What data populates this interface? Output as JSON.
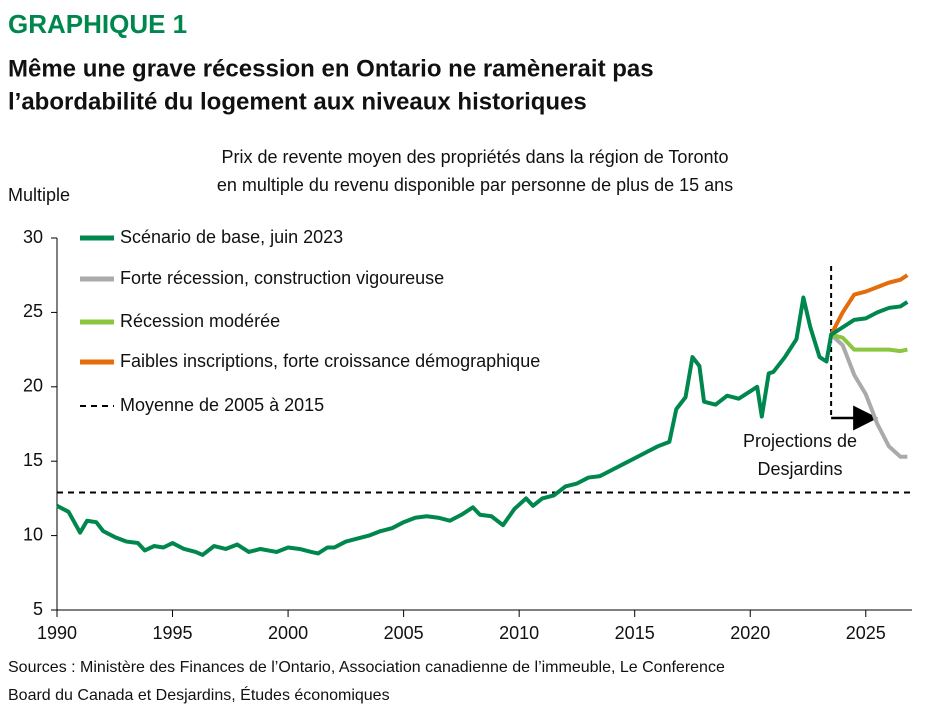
{
  "chart_data": {
    "type": "line",
    "label": "GRAPHIQUE 1",
    "title": [
      "Même une grave récession en Ontario ne ramènerait pas",
      "l’abordabilité du logement aux niveaux historiques"
    ],
    "subtitle": [
      "Prix de revente moyen des propriétés dans la région de Toronto",
      "en multiple du revenu disponible par personne de plus de 15 ans"
    ],
    "ylabel": "Multiple",
    "source": [
      "Sources : Ministère des Finances de l’Ontario, Association canadienne de l’immeuble, Le Conference",
      "Board du Canada et Desjardins, Études économiques"
    ],
    "xlim": [
      1990,
      2027
    ],
    "xticks": [
      1990,
      1995,
      2000,
      2005,
      2010,
      2015,
      2020,
      2025
    ],
    "ylim": [
      5,
      30
    ],
    "yticks": [
      5,
      10,
      15,
      20,
      25,
      30
    ],
    "grid": false,
    "legend": "top-left",
    "series": [
      {
        "name": "Scénario de base, juin 2023",
        "color": "#00874e",
        "x": [
          1990.0,
          1990.5,
          1991.0,
          1991.3,
          1991.7,
          1992.0,
          1992.5,
          1993.0,
          1993.5,
          1993.8,
          1994.2,
          1994.6,
          1995.0,
          1995.5,
          1996.0,
          1996.3,
          1996.8,
          1997.3,
          1997.8,
          1998.3,
          1998.8,
          1999.5,
          2000.0,
          2000.5,
          2001.0,
          2001.3,
          2001.7,
          2002.0,
          2002.5,
          2003.0,
          2003.5,
          2004.0,
          2004.5,
          2005.0,
          2005.5,
          2006.0,
          2006.5,
          2007.0,
          2007.5,
          2008.0,
          2008.3,
          2008.8,
          2009.3,
          2009.8,
          2010.3,
          2010.6,
          2011.0,
          2011.5,
          2012.0,
          2012.5,
          2013.0,
          2013.5,
          2014.0,
          2014.5,
          2015.0,
          2015.5,
          2016.0,
          2016.5,
          2016.8,
          2017.2,
          2017.5,
          2017.8,
          2018.0,
          2018.5,
          2019.0,
          2019.5,
          2020.0,
          2020.3,
          2020.5,
          2020.8,
          2021.0,
          2021.5,
          2022.0,
          2022.3,
          2022.6,
          2023.0,
          2023.3,
          2023.5,
          2024.0,
          2024.5,
          2025.0,
          2025.5,
          2026.0,
          2026.5,
          2026.8
        ],
        "values": [
          12.0,
          11.6,
          10.2,
          11.0,
          10.9,
          10.3,
          9.9,
          9.6,
          9.5,
          9.0,
          9.3,
          9.2,
          9.5,
          9.1,
          8.9,
          8.7,
          9.3,
          9.1,
          9.4,
          8.9,
          9.1,
          8.9,
          9.2,
          9.1,
          8.9,
          8.8,
          9.2,
          9.2,
          9.6,
          9.8,
          10.0,
          10.3,
          10.5,
          10.9,
          11.2,
          11.3,
          11.2,
          11.0,
          11.4,
          11.9,
          11.4,
          11.3,
          10.7,
          11.8,
          12.5,
          12.0,
          12.5,
          12.7,
          13.3,
          13.5,
          13.9,
          14.0,
          14.4,
          14.8,
          15.2,
          15.6,
          16.0,
          16.3,
          18.5,
          19.3,
          22.0,
          21.4,
          19.0,
          18.8,
          19.4,
          19.2,
          19.7,
          20.0,
          18.0,
          20.9,
          21.0,
          22.0,
          23.2,
          26.0,
          24.0,
          22.0,
          21.7,
          23.5,
          24.0,
          24.5,
          24.6,
          25.0,
          25.3,
          25.4,
          25.7
        ]
      },
      {
        "name": "Forte récession, construction vigoureuse",
        "color": "#aaaaaa",
        "x": [
          2023.5,
          2024.0,
          2024.5,
          2025.0,
          2025.5,
          2026.0,
          2026.5,
          2026.8
        ],
        "values": [
          23.5,
          22.8,
          20.8,
          19.5,
          17.5,
          16.0,
          15.3,
          15.3
        ]
      },
      {
        "name": "Récession modérée",
        "color": "#8cc63f",
        "x": [
          2023.5,
          2024.0,
          2024.5,
          2025.0,
          2025.5,
          2026.0,
          2026.5,
          2026.8
        ],
        "values": [
          23.5,
          23.3,
          22.5,
          22.5,
          22.5,
          22.5,
          22.4,
          22.5
        ]
      },
      {
        "name": "Faibles inscriptions, forte croissance démographique",
        "color": "#e46c0a",
        "x": [
          2023.5,
          2024.0,
          2024.5,
          2025.0,
          2025.5,
          2026.0,
          2026.5,
          2026.8
        ],
        "values": [
          23.5,
          25.0,
          26.2,
          26.4,
          26.7,
          27.0,
          27.2,
          27.5
        ]
      }
    ],
    "reference_line": {
      "name": "Moyenne de 2005 à 2015",
      "value": 12.9
    },
    "projection_start": 2023.5,
    "annotation": [
      "Projections de",
      "Desjardins"
    ]
  }
}
